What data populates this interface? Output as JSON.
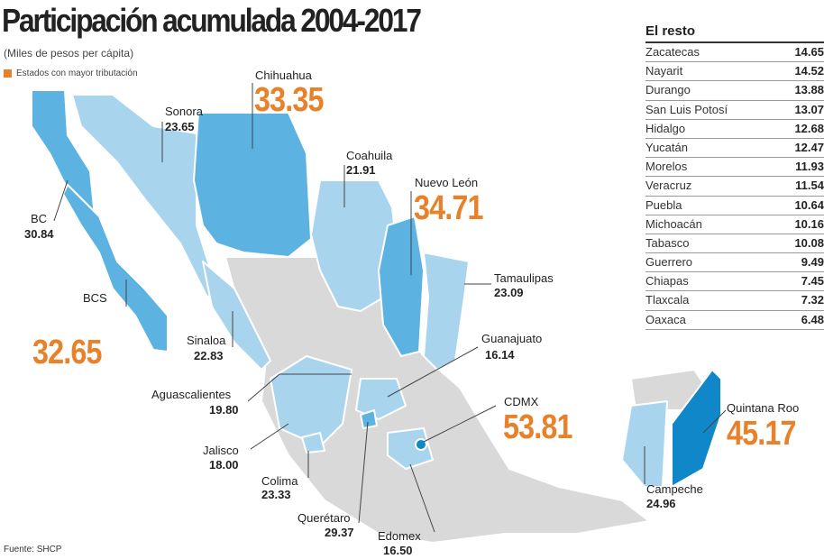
{
  "header": {
    "title": "Participación acumulada 2004-2017",
    "subtitle": "(Miles de pesos per cápita)",
    "legend": "Estados con mayor tributación"
  },
  "colors": {
    "highlight": "#e8822a",
    "light_blue": "#a9d4ee",
    "mid_blue": "#5cb2e0",
    "dark_blue": "#0f87c9",
    "gray": "#d9d9d9"
  },
  "states": {
    "sonora": {
      "name": "Sonora",
      "value": "23.65"
    },
    "chihuahua": {
      "name": "Chihuahua",
      "value": "33.35"
    },
    "coahuila": {
      "name": "Coahuila",
      "value": "21.91"
    },
    "nuevo_leon": {
      "name": "Nuevo León",
      "value": "34.71"
    },
    "tamaulipas": {
      "name": "Tamaulipas",
      "value": "23.09"
    },
    "bc": {
      "name": "BC",
      "value": "30.84"
    },
    "bcs": {
      "name": "BCS",
      "value": "32.65"
    },
    "sinaloa": {
      "name": "Sinaloa",
      "value": "22.83"
    },
    "guanajuato": {
      "name": "Guanajuato",
      "value": "16.14"
    },
    "aguascalientes": {
      "name": "Aguascalientes",
      "value": "19.80"
    },
    "cdmx": {
      "name": "CDMX",
      "value": "53.81"
    },
    "quintana_roo": {
      "name": "Quintana Roo",
      "value": "45.17"
    },
    "jalisco": {
      "name": "Jalisco",
      "value": "18.00"
    },
    "colima": {
      "name": "Colima",
      "value": "23.33"
    },
    "campeche": {
      "name": "Campeche",
      "value": "24.96"
    },
    "queretaro": {
      "name": "Querétaro",
      "value": "29.37"
    },
    "edomex": {
      "name": "Edomex",
      "value": "16.50"
    }
  },
  "rest": {
    "title": "El resto",
    "rows": [
      {
        "name": "Zacatecas",
        "value": "14.65"
      },
      {
        "name": "Nayarit",
        "value": "14.52"
      },
      {
        "name": "Durango",
        "value": "13.88"
      },
      {
        "name": "San Luis Potosí",
        "value": "13.07"
      },
      {
        "name": "Hidalgo",
        "value": "12.68"
      },
      {
        "name": "Yucatán",
        "value": "12.47"
      },
      {
        "name": "Morelos",
        "value": "11.93"
      },
      {
        "name": "Veracruz",
        "value": "11.54"
      },
      {
        "name": "Puebla",
        "value": "10.64"
      },
      {
        "name": "Michoacán",
        "value": "10.16"
      },
      {
        "name": "Tabasco",
        "value": "10.08"
      },
      {
        "name": "Guerrero",
        "value": "9.49"
      },
      {
        "name": "Chiapas",
        "value": "7.45"
      },
      {
        "name": "Tlaxcala",
        "value": "7.32"
      },
      {
        "name": "Oaxaca",
        "value": "6.48"
      }
    ]
  },
  "source": "Fuente: SHCP"
}
